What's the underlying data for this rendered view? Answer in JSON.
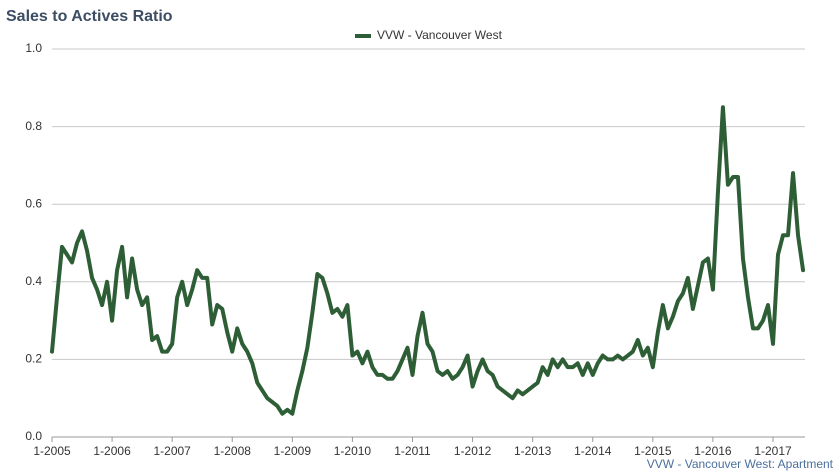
{
  "chart_data": {
    "type": "line",
    "title": "Sales to Actives Ratio",
    "credit": "VVW - Vancouver West: Apartment",
    "categories": [
      "1-2005",
      null,
      null,
      null,
      null,
      null,
      null,
      null,
      null,
      null,
      null,
      null,
      "1-2006",
      null,
      null,
      null,
      null,
      null,
      null,
      null,
      null,
      null,
      null,
      null,
      "1-2007",
      null,
      null,
      null,
      null,
      null,
      null,
      null,
      null,
      null,
      null,
      null,
      "1-2008",
      null,
      null,
      null,
      null,
      null,
      null,
      null,
      null,
      null,
      null,
      null,
      "1-2009",
      null,
      null,
      null,
      null,
      null,
      null,
      null,
      null,
      null,
      null,
      null,
      "1-2010",
      null,
      null,
      null,
      null,
      null,
      null,
      null,
      null,
      null,
      null,
      null,
      "1-2011",
      null,
      null,
      null,
      null,
      null,
      null,
      null,
      null,
      null,
      null,
      null,
      "1-2012",
      null,
      null,
      null,
      null,
      null,
      null,
      null,
      null,
      null,
      null,
      null,
      "1-2013",
      null,
      null,
      null,
      null,
      null,
      null,
      null,
      null,
      null,
      null,
      null,
      "1-2014",
      null,
      null,
      null,
      null,
      null,
      null,
      null,
      null,
      null,
      null,
      null,
      "1-2015",
      null,
      null,
      null,
      null,
      null,
      null,
      null,
      null,
      null,
      null,
      null,
      "1-2016",
      null,
      null,
      null,
      null,
      null,
      null,
      null,
      null,
      null,
      null,
      null,
      "1-2017",
      null,
      null,
      null,
      null,
      null,
      null
    ],
    "series": [
      {
        "name": "VVW - Vancouver West",
        "color": "#2e5e36",
        "values": [
          0.22,
          0.36,
          0.49,
          0.47,
          0.45,
          0.5,
          0.53,
          0.48,
          0.41,
          0.38,
          0.34,
          0.4,
          0.3,
          0.43,
          0.49,
          0.36,
          0.46,
          0.38,
          0.34,
          0.36,
          0.25,
          0.26,
          0.22,
          0.22,
          0.24,
          0.36,
          0.4,
          0.34,
          0.38,
          0.43,
          0.41,
          0.41,
          0.29,
          0.34,
          0.33,
          0.27,
          0.22,
          0.28,
          0.24,
          0.22,
          0.19,
          0.14,
          0.12,
          0.1,
          0.09,
          0.08,
          0.06,
          0.07,
          0.06,
          0.12,
          0.17,
          0.23,
          0.32,
          0.42,
          0.41,
          0.37,
          0.32,
          0.33,
          0.31,
          0.34,
          0.21,
          0.22,
          0.19,
          0.22,
          0.18,
          0.16,
          0.16,
          0.15,
          0.15,
          0.17,
          0.2,
          0.23,
          0.16,
          0.26,
          0.32,
          0.24,
          0.22,
          0.17,
          0.16,
          0.17,
          0.15,
          0.16,
          0.18,
          0.21,
          0.13,
          0.17,
          0.2,
          0.17,
          0.16,
          0.13,
          0.12,
          0.11,
          0.1,
          0.12,
          0.11,
          0.12,
          0.13,
          0.14,
          0.18,
          0.16,
          0.2,
          0.18,
          0.2,
          0.18,
          0.18,
          0.19,
          0.16,
          0.19,
          0.16,
          0.19,
          0.21,
          0.2,
          0.2,
          0.21,
          0.2,
          0.21,
          0.22,
          0.25,
          0.21,
          0.23,
          0.18,
          0.27,
          0.34,
          0.28,
          0.31,
          0.35,
          0.37,
          0.41,
          0.33,
          0.39,
          0.45,
          0.46,
          0.38,
          0.63,
          0.85,
          0.65,
          0.67,
          0.67,
          0.46,
          0.36,
          0.28,
          0.28,
          0.3,
          0.34,
          0.24,
          0.47,
          0.52,
          0.52,
          0.68,
          0.52,
          0.43
        ]
      }
    ],
    "ylim": [
      0,
      1
    ],
    "yticks": [
      {
        "value": 0,
        "label": "0.0"
      },
      0.2,
      0.4,
      0.6,
      0.8,
      {
        "value": 1,
        "label": "1.0"
      }
    ],
    "grid": true,
    "legend": "top"
  }
}
